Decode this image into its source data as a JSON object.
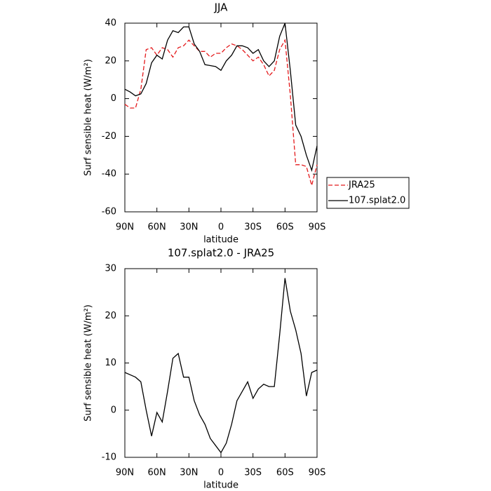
{
  "chart_data": [
    {
      "type": "line",
      "title": "JJA",
      "xlabel": "latitude",
      "ylabel": "Surf sensible heat (W/m²)",
      "x": [
        90,
        85,
        80,
        75,
        70,
        65,
        60,
        55,
        50,
        45,
        40,
        35,
        30,
        25,
        20,
        15,
        10,
        5,
        0,
        -5,
        -10,
        -15,
        -20,
        -25,
        -30,
        -35,
        -40,
        -45,
        -50,
        -55,
        -60,
        -65,
        -70,
        -75,
        -80,
        -85,
        -90
      ],
      "series": [
        {
          "name": "JRA25",
          "color": "#e41a1c",
          "dashed": true,
          "values": [
            -3,
            -5,
            -5,
            5,
            26,
            27,
            23,
            27,
            26,
            22,
            27,
            28,
            31,
            28,
            25,
            25,
            22,
            24,
            24,
            27,
            29,
            28,
            26,
            23,
            20,
            22,
            18,
            12,
            15,
            26,
            31,
            2,
            -35,
            -35,
            -36,
            -46,
            -35
          ]
        },
        {
          "name": "107.splat2.0",
          "color": "#000000",
          "dashed": false,
          "values": [
            5,
            3.5,
            1.5,
            2.5,
            8,
            19,
            23,
            21,
            31,
            36,
            35,
            38,
            38,
            29,
            25,
            18,
            17.5,
            17,
            15,
            20,
            23,
            28,
            28,
            27,
            24,
            26,
            20,
            17,
            20,
            33,
            40,
            15,
            -14,
            -20,
            -30,
            -38,
            -25
          ]
        }
      ],
      "xlim": [
        90,
        -90
      ],
      "xticks": [
        {
          "value": 90,
          "label": "90N"
        },
        {
          "value": 60,
          "label": "60N"
        },
        {
          "value": 30,
          "label": "30N"
        },
        0,
        {
          "value": -30,
          "label": "30S"
        },
        {
          "value": -60,
          "label": "60S"
        },
        {
          "value": -90,
          "label": "90S"
        }
      ],
      "ylim": [
        -60,
        40
      ],
      "yticks": [
        -60,
        -40,
        -20,
        0,
        20,
        40
      ],
      "legend": "right"
    },
    {
      "type": "line",
      "title": "107.splat2.0 - JRA25",
      "xlabel": "latitude",
      "ylabel": "Surf sensible heat (W/m²)",
      "x": [
        90,
        85,
        80,
        75,
        70,
        65,
        60,
        55,
        50,
        45,
        40,
        35,
        30,
        25,
        20,
        15,
        10,
        5,
        0,
        -5,
        -10,
        -15,
        -20,
        -25,
        -30,
        -35,
        -40,
        -45,
        -50,
        -55,
        -60,
        -65,
        -70,
        -75,
        -80,
        -85,
        -90
      ],
      "color": "#000000",
      "values": [
        8,
        7.5,
        7,
        6,
        0,
        -5.5,
        -0.5,
        -2.5,
        4,
        11,
        12,
        7,
        7,
        2,
        -1,
        -3,
        -6,
        -7.5,
        -9,
        -7,
        -3,
        2,
        4,
        6,
        2.5,
        4.5,
        5.5,
        5,
        5,
        16,
        28,
        21,
        17,
        12,
        3,
        8,
        8.5
      ],
      "xlim": [
        90,
        -90
      ],
      "xticks": [
        {
          "value": 90,
          "label": "90N"
        },
        {
          "value": 60,
          "label": "60N"
        },
        {
          "value": 30,
          "label": "30N"
        },
        0,
        {
          "value": -30,
          "label": "30S"
        },
        {
          "value": -60,
          "label": "60S"
        },
        {
          "value": -90,
          "label": "90S"
        }
      ],
      "ylim": [
        -10,
        30
      ],
      "yticks": [
        -10,
        0,
        10,
        20,
        30
      ]
    }
  ]
}
